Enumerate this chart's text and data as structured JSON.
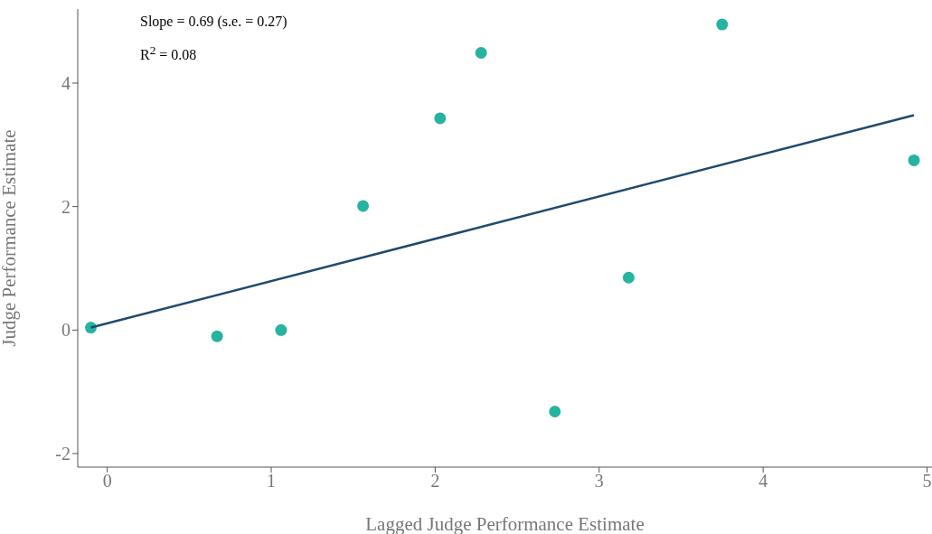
{
  "chart_data": {
    "type": "scatter",
    "xlabel": "Lagged Judge Performance Estimate",
    "ylabel": "Judge Performance Estimate",
    "annotations": [
      "Slope = 0.69 (s.e. = 0.27)",
      "R$^{2}$ = 0.08"
    ],
    "series": [
      {
        "marker": "circle",
        "color": "#26b3a0",
        "x": [
          -0.1,
          0.67,
          1.06,
          1.56,
          2.03,
          2.28,
          2.73,
          3.18,
          3.75,
          4.92
        ],
        "values": [
          0.04,
          -0.1,
          0.0,
          2.01,
          3.43,
          4.49,
          -1.32,
          0.85,
          4.95,
          2.75
        ]
      },
      {
        "type": "line",
        "color": "#1f4a6e",
        "line_style": "solid",
        "x": [
          -0.1,
          4.92
        ],
        "values": [
          0.04,
          3.48
        ]
      }
    ],
    "xlim": [
      -0.18,
      5.03
    ],
    "ylim": [
      -2.22,
      5.2
    ],
    "xticks": [
      0,
      1,
      2,
      3,
      4,
      5
    ],
    "yticks": [
      -2,
      0,
      2,
      4
    ]
  }
}
